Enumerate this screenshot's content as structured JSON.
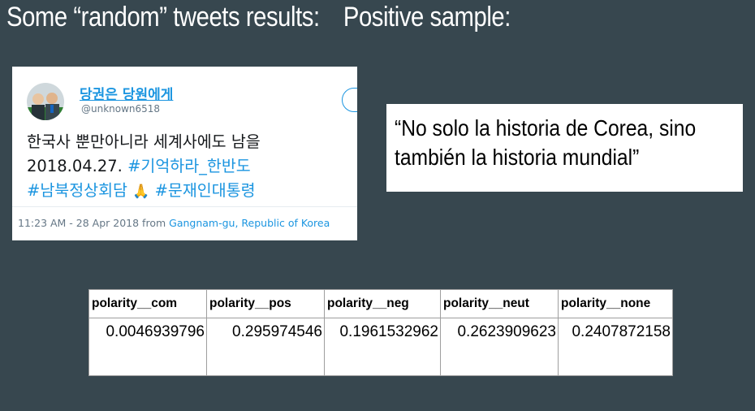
{
  "slide": {
    "title_left": "Some “random” tweets results:",
    "title_right": "Positive sample:"
  },
  "tweet": {
    "user_name": "당권은 당원에게",
    "user_handle": "@unknown6518",
    "text_line1": "한국사 뿐만아니라 세계사에도 남을",
    "text_date": "2018.04.27.",
    "hashtag1": "#기억하라_한반도",
    "hashtag2": "#남북정상회담",
    "emoji": "🙏",
    "hashtag3": "#문재인대통령",
    "meta_time": "11:23 AM - 28 Apr 2018 from",
    "meta_location": "Gangnam-gu, Republic of Korea",
    "colors": {
      "link": "#1b95e0",
      "meta": "#657786"
    }
  },
  "translation": {
    "text": "“No solo la historia de Corea, sino también la historia mundial”"
  },
  "results_table": {
    "headers": [
      "polarity__com",
      "polarity__pos",
      "polarity__neg",
      "polarity__neut",
      "polarity__none"
    ],
    "values": [
      "0.0046939796",
      "0.295974546",
      "0.1961532962",
      "0.2623909623",
      "0.2407872158"
    ]
  }
}
